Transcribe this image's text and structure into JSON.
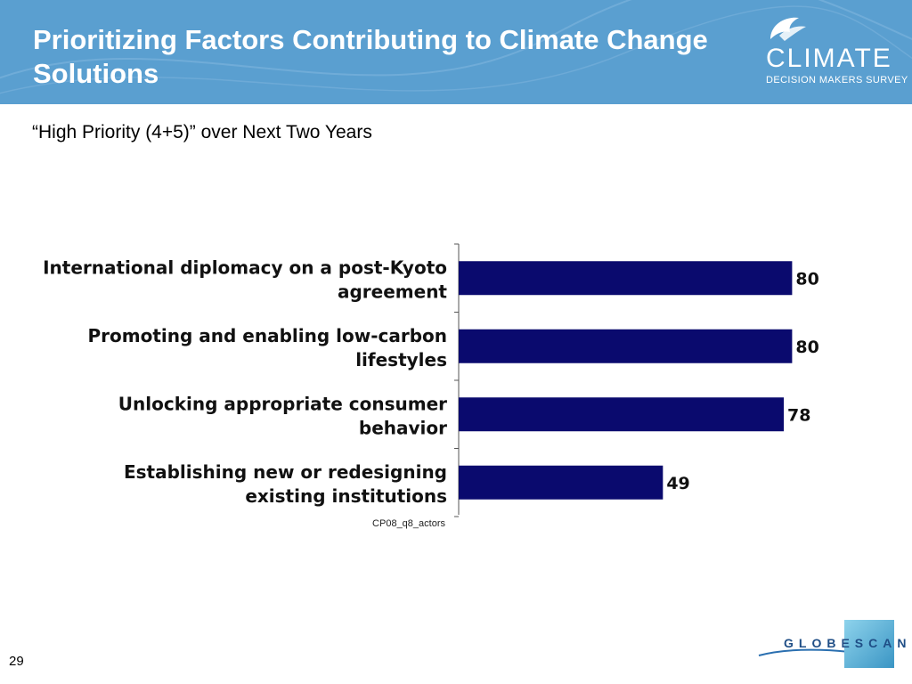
{
  "header": {
    "title": "Prioritizing Factors Contributing to Climate Change Solutions",
    "logo": {
      "word": "CLIMATE",
      "sub": "DECISION MAKERS SURVEY",
      "icon": "bird-swirl-icon"
    }
  },
  "subtitle": "“High Priority (4+5)” over Next Two Years",
  "chart_data": {
    "type": "bar",
    "orientation": "horizontal",
    "categories": [
      [
        "International diplomacy on a post-Kyoto",
        "agreement"
      ],
      [
        "Promoting and enabling low-carbon",
        "lifestyles"
      ],
      [
        "Unlocking appropriate consumer",
        "behavior"
      ],
      [
        "Establishing new or redesigning",
        "existing institutions"
      ]
    ],
    "values": [
      80,
      80,
      78,
      49
    ],
    "value_labels": [
      "80",
      "80",
      "78",
      "49"
    ],
    "xlim": [
      0,
      100
    ],
    "bar_color": "#0a0a6e",
    "grid": false,
    "title": "",
    "xlabel": "",
    "ylabel": ""
  },
  "source_note": "CP08_q8_actors",
  "footer": {
    "page_number": "29",
    "brand": "GLOBESCAN"
  },
  "colors": {
    "header_bg": "#5a9fd0",
    "bar": "#0a0a6e"
  }
}
